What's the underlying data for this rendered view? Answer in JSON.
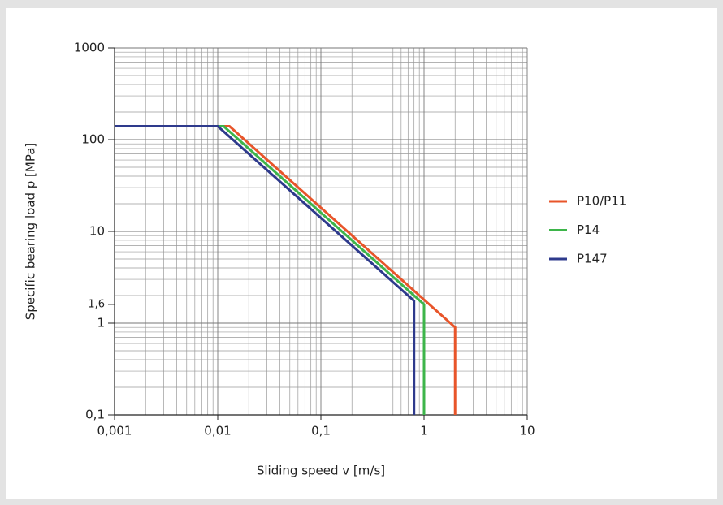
{
  "chart_data": {
    "type": "line",
    "xlabel": "Sliding speed v [m/s]",
    "ylabel": "Specific bearing load p [MPa]",
    "xlog": true,
    "ylog": true,
    "grid": true,
    "minor_grid": true,
    "legend": "right",
    "xlim": [
      0.001,
      10
    ],
    "ylim": [
      0.1,
      1000
    ],
    "xticks": [
      {
        "value": 0.001,
        "label": "0,001"
      },
      {
        "value": 0.01,
        "label": "0,01"
      },
      {
        "value": 0.1,
        "label": "0,1"
      },
      1,
      10
    ],
    "yticks": [
      {
        "value": 0.1,
        "label": "0,1"
      },
      1,
      {
        "value": 1.6,
        "label": "1,6",
        "color": "#2a64a8"
      },
      10,
      100,
      1000
    ],
    "series": [
      {
        "name": "P10/P11",
        "color": "#e8552a",
        "x": [
          0.001,
          0.013,
          2,
          2
        ],
        "values": [
          140,
          140,
          0.9,
          0.1
        ]
      },
      {
        "name": "P14",
        "color": "#3db54a",
        "x": [
          0.001,
          0.0114,
          1,
          1
        ],
        "values": [
          140,
          140,
          1.6,
          0.1
        ]
      },
      {
        "name": "P147",
        "color": "#2e3a8c",
        "x": [
          0.001,
          0.01,
          0.8,
          0.8
        ],
        "values": [
          140,
          140,
          1.75,
          0.1
        ]
      }
    ]
  }
}
